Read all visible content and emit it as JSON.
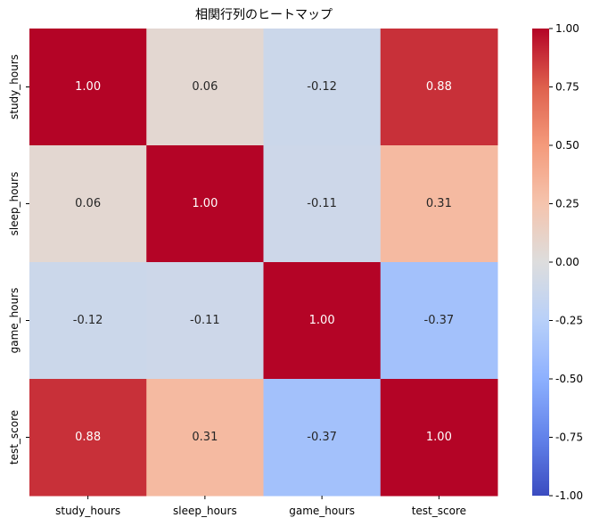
{
  "chart_data": {
    "type": "heatmap",
    "title": "相関行列のヒートマップ",
    "xlabel": "",
    "ylabel": "",
    "rows": [
      "study_hours",
      "sleep_hours",
      "game_hours",
      "test_score"
    ],
    "cols": [
      "study_hours",
      "sleep_hours",
      "game_hours",
      "test_score"
    ],
    "values": [
      [
        1.0,
        0.06,
        -0.12,
        0.88
      ],
      [
        0.06,
        1.0,
        -0.11,
        0.31
      ],
      [
        -0.12,
        -0.11,
        1.0,
        -0.37
      ],
      [
        0.88,
        0.31,
        -0.37,
        1.0
      ]
    ],
    "value_labels": [
      [
        "1.00",
        "0.06",
        "-0.12",
        "0.88"
      ],
      [
        "0.06",
        "1.00",
        "-0.11",
        "0.31"
      ],
      [
        "-0.12",
        "-0.11",
        "1.00",
        "-0.37"
      ],
      [
        "0.88",
        "0.31",
        "-0.37",
        "1.00"
      ]
    ],
    "colormap": "coolwarm",
    "vmin": -1.0,
    "vmax": 1.0,
    "colorbar_ticks": [
      "-1.00",
      "-0.75",
      "-0.50",
      "-0.25",
      "0.00",
      "0.25",
      "0.50",
      "0.75",
      "1.00"
    ],
    "colorbar_tick_values": [
      -1.0,
      -0.75,
      -0.5,
      -0.25,
      0.0,
      0.25,
      0.5,
      0.75,
      1.0
    ],
    "colorbar_position": "right",
    "grid": false
  }
}
